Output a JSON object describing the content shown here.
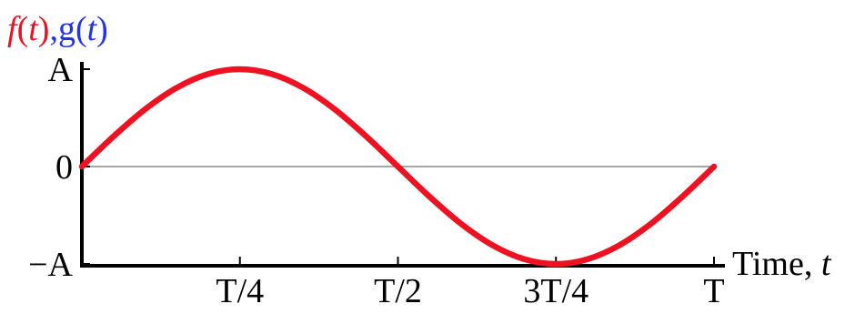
{
  "chart_data": {
    "type": "line",
    "ylabel_parts": {
      "f": "f",
      "f_arg": "(",
      "f_t": "t",
      "f_close": ")",
      "sep": ",",
      "g": "g(",
      "g_t": "t",
      "g_close": ")"
    },
    "xlabel_parts": {
      "text": "Time, ",
      "var": "t"
    },
    "x_ticks": [
      {
        "value": 0.25,
        "label": "T/4"
      },
      {
        "value": 0.5,
        "label": "T/2"
      },
      {
        "value": 0.75,
        "label": "3T/4"
      },
      {
        "value": 1.0,
        "label": "T"
      }
    ],
    "y_ticks": [
      {
        "value": 1,
        "label": "A"
      },
      {
        "value": 0,
        "label": "0"
      },
      {
        "value": -1,
        "label": "−A"
      }
    ],
    "xlim": [
      0,
      1
    ],
    "ylim": [
      -1,
      1
    ],
    "series": [
      {
        "color": "#ee1122",
        "x": [
          0,
          0.05,
          0.1,
          0.15,
          0.2,
          0.25,
          0.3,
          0.35,
          0.4,
          0.45,
          0.5,
          0.55,
          0.6,
          0.65,
          0.7,
          0.75,
          0.8,
          0.85,
          0.9,
          0.95,
          1.0
        ],
        "y": [
          0,
          0.309,
          0.588,
          0.809,
          0.951,
          1.0,
          0.951,
          0.809,
          0.588,
          0.309,
          0,
          -0.309,
          -0.588,
          -0.809,
          -0.951,
          -1.0,
          -0.951,
          -0.809,
          -0.588,
          -0.309,
          0
        ]
      }
    ],
    "colors": {
      "f": "#ee1122",
      "g": "#2233ee",
      "axis": "#000000",
      "zero_line": "#888888"
    }
  }
}
